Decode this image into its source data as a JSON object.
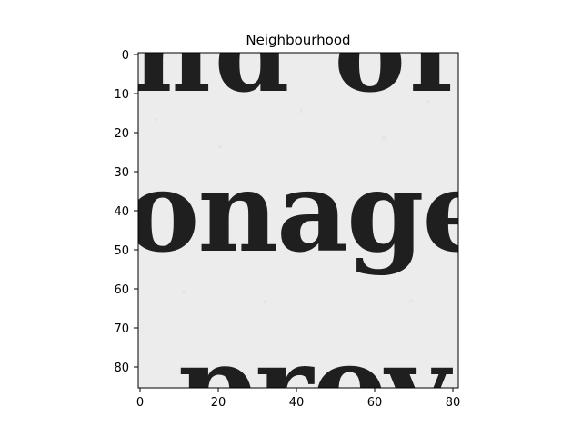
{
  "figure": {
    "title": "Neighbourhood",
    "xaxis": {
      "ticks": [
        "0",
        "20",
        "40",
        "60",
        "80"
      ],
      "range": [
        -0.5,
        81.5
      ]
    },
    "yaxis": {
      "ticks": [
        "0",
        "10",
        "20",
        "30",
        "40",
        "50",
        "60",
        "70",
        "80"
      ],
      "range": [
        -0.5,
        85.5
      ]
    },
    "image": {
      "kind": "grayscale text crop",
      "background_color": "#ececec",
      "ink_color": "#1f1f1f"
    }
  }
}
